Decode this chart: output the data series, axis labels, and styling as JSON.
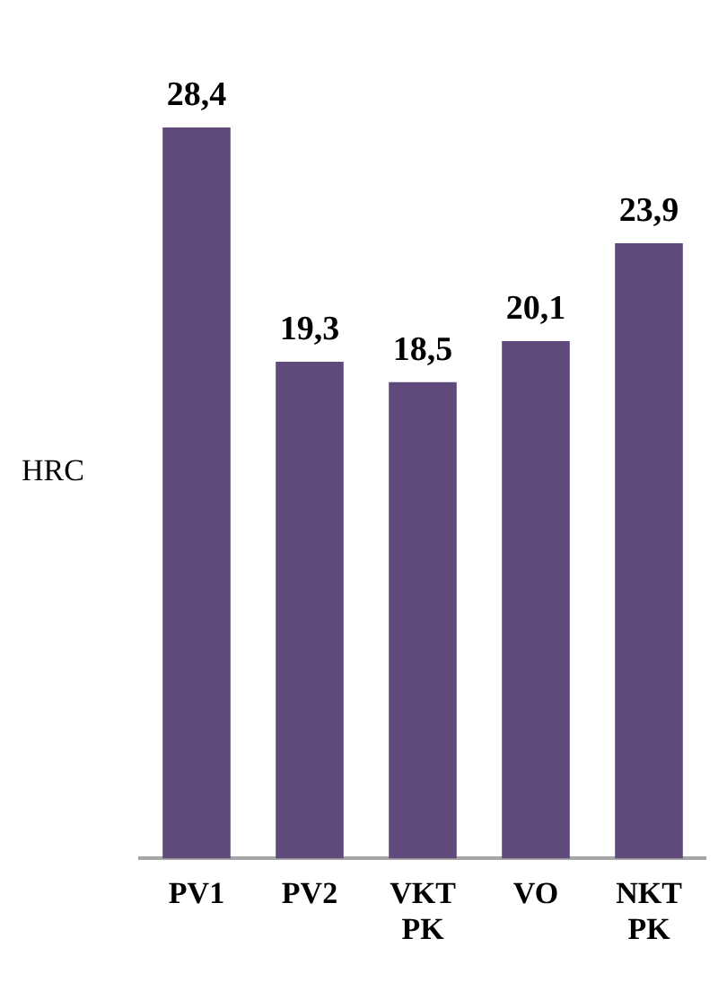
{
  "chart_data": {
    "type": "bar",
    "ylabel": "HRC",
    "categories": [
      "PV1",
      "PV2",
      "VKT PK",
      "VO",
      "NKT PK"
    ],
    "values": [
      28.4,
      19.3,
      18.5,
      20.1,
      23.9
    ],
    "value_labels": [
      "28,4",
      "19,3",
      "18,5",
      "20,1",
      "23,9"
    ],
    "color": "#604a7b",
    "grid": false,
    "legend": false
  }
}
